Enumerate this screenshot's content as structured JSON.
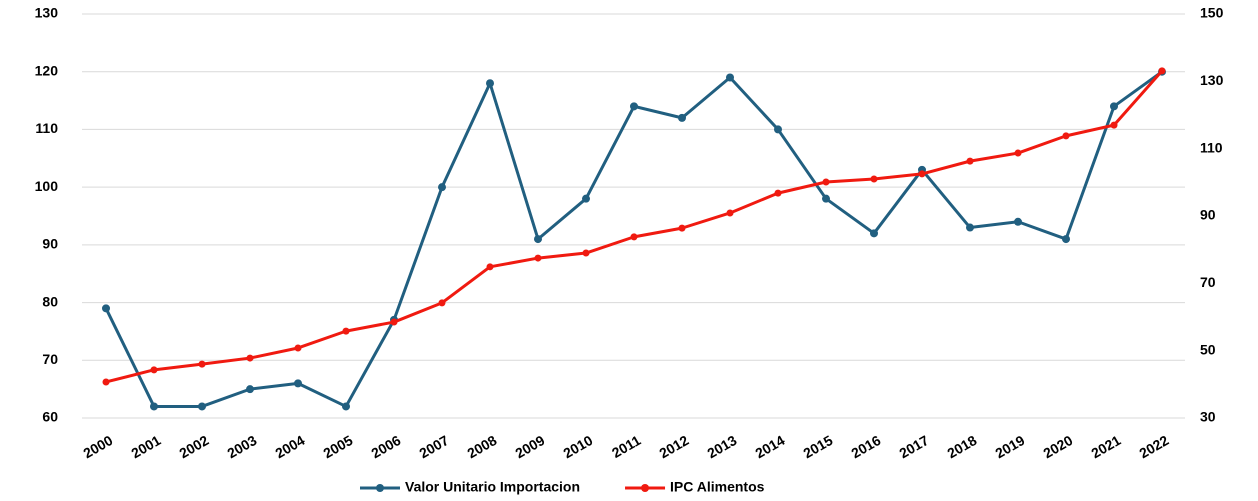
{
  "chart_data": {
    "type": "line",
    "categories": [
      "2000",
      "2001",
      "2002",
      "2003",
      "2004",
      "2005",
      "2006",
      "2007",
      "2008",
      "2009",
      "2010",
      "2011",
      "2012",
      "2013",
      "2014",
      "2015",
      "2016",
      "2017",
      "2018",
      "2019",
      "2020",
      "2021",
      "2022"
    ],
    "series": [
      {
        "name": "Valor Unitario Importacion",
        "color": "#215f80",
        "values": [
          79,
          62,
          62,
          65,
          66,
          62,
          77,
          100,
          118,
          91,
          98,
          114,
          112,
          119,
          110,
          98,
          92,
          103,
          93,
          94,
          91,
          114,
          120
        ]
      },
      {
        "name": "IPC Alimentos",
        "color": "#f01a10",
        "axis": "y2",
        "values": [
          40.7,
          44.3,
          46,
          47.8,
          50.8,
          55.8,
          58.5,
          64.2,
          74.9,
          77.5,
          79,
          83.8,
          86.4,
          90.9,
          96.8,
          100.1,
          101,
          102.5,
          106.3,
          108.7,
          113.8,
          117,
          133.1
        ]
      }
    ],
    "ylim": [
      60,
      130
    ],
    "yticks": [
      60,
      70,
      80,
      90,
      100,
      110,
      120,
      130
    ],
    "y2lim": [
      30,
      150
    ],
    "y2ticks": [
      30,
      50,
      70,
      90,
      110,
      130,
      150
    ],
    "grid": true,
    "legend": "bottom"
  }
}
